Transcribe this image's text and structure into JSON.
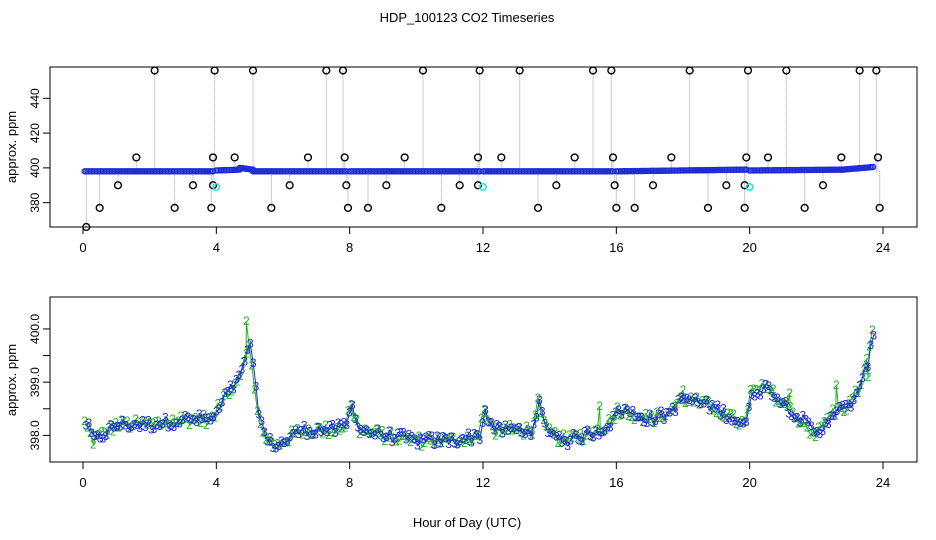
{
  "title": "HDP_100123  CO2 Timeseries",
  "xlabel": "Hour of Day (UTC)",
  "chart_data": [
    {
      "type": "scatter",
      "panel": "top",
      "ylabel": "approx. ppm",
      "xlim": [
        0,
        24
      ],
      "ylim": [
        366,
        458
      ],
      "x_ticks": [
        0,
        4,
        8,
        12,
        16,
        20,
        24
      ],
      "y_ticks": [
        380,
        400,
        420,
        440
      ],
      "grid": false,
      "legend": "none",
      "colors": {
        "baseline": "#1f2ad6",
        "spike": "#000000",
        "flag": "#29e1e6",
        "line": "#9a9a9a"
      },
      "baseline": {
        "level": 398,
        "segments": [
          {
            "x0": 0.05,
            "x1": 3.9,
            "y": [
              398,
              398
            ]
          },
          {
            "x0": 4.0,
            "x1": 4.7,
            "y": [
              398.5,
              399
            ]
          },
          {
            "x0": 4.7,
            "x1": 5.1,
            "y": [
              400,
              399
            ]
          },
          {
            "x0": 5.1,
            "x1": 7.9,
            "y": [
              398,
              398
            ]
          },
          {
            "x0": 8.0,
            "x1": 11.9,
            "y": [
              398,
              398
            ]
          },
          {
            "x0": 12.0,
            "x1": 15.9,
            "y": [
              398,
              398
            ]
          },
          {
            "x0": 16.0,
            "x1": 19.9,
            "y": [
              398,
              399
            ]
          },
          {
            "x0": 20.0,
            "x1": 22.8,
            "y": [
              398.5,
              399
            ]
          },
          {
            "x0": 22.8,
            "x1": 23.7,
            "y": [
              399,
              400.5
            ]
          }
        ]
      },
      "spikes": [
        {
          "x": 0.1,
          "y": 366
        },
        {
          "x": 0.5,
          "y": 377
        },
        {
          "x": 1.05,
          "y": 390
        },
        {
          "x": 1.6,
          "y": 406
        },
        {
          "x": 2.15,
          "y": 456
        },
        {
          "x": 2.75,
          "y": 377
        },
        {
          "x": 3.3,
          "y": 390
        },
        {
          "x": 3.85,
          "y": 377
        },
        {
          "x": 3.9,
          "y": 406
        },
        {
          "x": 3.95,
          "y": 456
        },
        {
          "x": 3.9,
          "y": 390
        },
        {
          "x": 4.55,
          "y": 406
        },
        {
          "x": 5.1,
          "y": 456
        },
        {
          "x": 5.65,
          "y": 377
        },
        {
          "x": 6.2,
          "y": 390
        },
        {
          "x": 6.75,
          "y": 406
        },
        {
          "x": 7.3,
          "y": 456
        },
        {
          "x": 7.8,
          "y": 456
        },
        {
          "x": 7.85,
          "y": 406
        },
        {
          "x": 7.9,
          "y": 390
        },
        {
          "x": 7.95,
          "y": 377
        },
        {
          "x": 8.55,
          "y": 377
        },
        {
          "x": 9.1,
          "y": 390
        },
        {
          "x": 9.65,
          "y": 406
        },
        {
          "x": 10.2,
          "y": 456
        },
        {
          "x": 10.75,
          "y": 377
        },
        {
          "x": 11.3,
          "y": 390
        },
        {
          "x": 11.85,
          "y": 406
        },
        {
          "x": 11.9,
          "y": 456
        },
        {
          "x": 11.85,
          "y": 390
        },
        {
          "x": 12.55,
          "y": 406
        },
        {
          "x": 13.1,
          "y": 456
        },
        {
          "x": 13.65,
          "y": 377
        },
        {
          "x": 14.2,
          "y": 390
        },
        {
          "x": 14.75,
          "y": 406
        },
        {
          "x": 15.3,
          "y": 456
        },
        {
          "x": 15.85,
          "y": 456
        },
        {
          "x": 15.9,
          "y": 406
        },
        {
          "x": 15.95,
          "y": 390
        },
        {
          "x": 16.0,
          "y": 377
        },
        {
          "x": 16.55,
          "y": 377
        },
        {
          "x": 17.1,
          "y": 390
        },
        {
          "x": 17.65,
          "y": 406
        },
        {
          "x": 18.2,
          "y": 456
        },
        {
          "x": 18.75,
          "y": 377
        },
        {
          "x": 19.3,
          "y": 390
        },
        {
          "x": 19.85,
          "y": 377
        },
        {
          "x": 19.9,
          "y": 406
        },
        {
          "x": 19.95,
          "y": 456
        },
        {
          "x": 19.85,
          "y": 390
        },
        {
          "x": 20.55,
          "y": 406
        },
        {
          "x": 21.1,
          "y": 456
        },
        {
          "x": 21.65,
          "y": 377
        },
        {
          "x": 22.2,
          "y": 390
        },
        {
          "x": 22.75,
          "y": 406
        },
        {
          "x": 23.3,
          "y": 456
        },
        {
          "x": 23.8,
          "y": 456
        },
        {
          "x": 23.85,
          "y": 406
        },
        {
          "x": 23.9,
          "y": 377
        }
      ],
      "flags": [
        {
          "x": 4.0,
          "y": 389
        },
        {
          "x": 12.0,
          "y": 389
        },
        {
          "x": 20.0,
          "y": 389
        }
      ]
    },
    {
      "type": "line",
      "panel": "bottom",
      "ylabel": "approx. ppm",
      "xlim": [
        0,
        24
      ],
      "ylim": [
        397.5,
        400.6
      ],
      "y_ticks": [
        398.0,
        398.5,
        399.0,
        399.5,
        400.0
      ],
      "y_tick_labels": [
        "398.0",
        "",
        "399.0",
        "",
        "400.0"
      ],
      "x_ticks": [
        0,
        4,
        8,
        12,
        16,
        20,
        24
      ],
      "grid": false,
      "legend": "none",
      "series": [
        {
          "marker": "2",
          "color": "#22b022"
        },
        {
          "marker": "3",
          "color": "#1f2ad6"
        }
      ],
      "keypoints": {
        "x": [
          0.0,
          0.3,
          1.0,
          2.0,
          3.0,
          3.9,
          4.2,
          4.7,
          4.95,
          5.2,
          5.45,
          5.8,
          6.5,
          7.5,
          7.9,
          8.0,
          8.3,
          9.0,
          10.0,
          11.0,
          11.9,
          12.0,
          12.3,
          13.0,
          13.5,
          13.65,
          13.8,
          14.1,
          14.5,
          15.0,
          15.5,
          15.9,
          16.0,
          16.5,
          17.0,
          17.5,
          18.0,
          18.5,
          19.0,
          19.5,
          19.9,
          20.0,
          20.5,
          21.0,
          21.5,
          22.0,
          22.4,
          22.8,
          23.0,
          23.3,
          23.6,
          23.75
        ],
        "y": [
          398.3,
          397.9,
          398.2,
          398.2,
          398.3,
          398.3,
          398.7,
          399.1,
          399.8,
          398.6,
          397.9,
          397.8,
          398.1,
          398.1,
          398.2,
          398.6,
          398.1,
          398.0,
          397.9,
          397.9,
          398.0,
          398.5,
          398.1,
          398.1,
          398.1,
          398.6,
          398.2,
          398.0,
          397.9,
          398.0,
          398.1,
          398.3,
          398.5,
          398.4,
          398.3,
          398.4,
          398.7,
          398.6,
          398.5,
          398.3,
          398.2,
          398.8,
          398.9,
          398.6,
          398.3,
          398.0,
          398.4,
          398.5,
          398.6,
          398.9,
          399.6,
          400.2
        ]
      }
    }
  ]
}
